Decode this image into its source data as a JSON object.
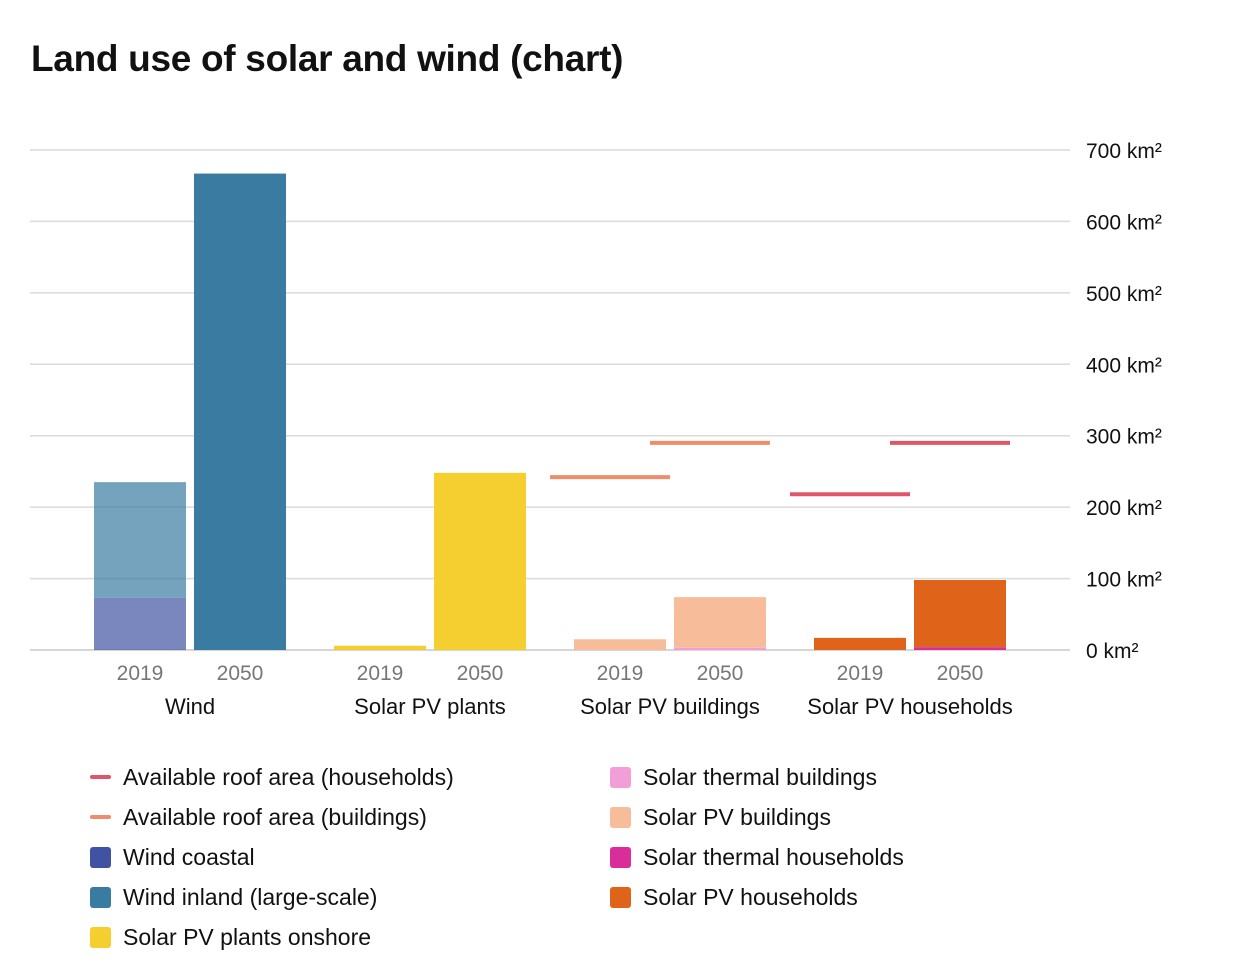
{
  "page": {
    "title": "Land use of solar and wind (chart)"
  },
  "chart_data": {
    "type": "bar",
    "title": "Land use of solar and wind (chart)",
    "xlabel": "",
    "ylabel": "",
    "ylim": [
      0,
      700
    ],
    "yticks": [
      0,
      100,
      200,
      300,
      400,
      500,
      600,
      700
    ],
    "y_unit": "km²",
    "grid": true,
    "legend_position": "bottom",
    "groups": [
      {
        "name": "Wind",
        "years": [
          {
            "year": "2019",
            "segments": [
              {
                "series": "Wind coastal",
                "value": 73
              },
              {
                "series": "Wind inland (large-scale)",
                "value": 162
              }
            ]
          },
          {
            "year": "2050",
            "segments": [
              {
                "series": "Wind coastal",
                "value": 0
              },
              {
                "series": "Wind inland (large-scale)",
                "value": 667
              }
            ]
          }
        ]
      },
      {
        "name": "Solar PV plants",
        "years": [
          {
            "year": "2019",
            "segments": [
              {
                "series": "Solar PV plants onshore",
                "value": 6
              }
            ]
          },
          {
            "year": "2050",
            "segments": [
              {
                "series": "Solar PV plants onshore",
                "value": 248
              }
            ]
          }
        ]
      },
      {
        "name": "Solar PV buildings",
        "years": [
          {
            "year": "2019",
            "segments": [
              {
                "series": "Solar thermal buildings",
                "value": 0
              },
              {
                "series": "Solar PV buildings",
                "value": 15
              }
            ],
            "lines": [
              {
                "series": "Available roof area (buildings)",
                "value": 242
              }
            ]
          },
          {
            "year": "2050",
            "segments": [
              {
                "series": "Solar thermal buildings",
                "value": 3
              },
              {
                "series": "Solar PV buildings",
                "value": 71
              }
            ],
            "lines": [
              {
                "series": "Available roof area (buildings)",
                "value": 290
              }
            ]
          }
        ]
      },
      {
        "name": "Solar PV households",
        "years": [
          {
            "year": "2019",
            "segments": [
              {
                "series": "Solar thermal households",
                "value": 0
              },
              {
                "series": "Solar PV households",
                "value": 17
              }
            ],
            "lines": [
              {
                "series": "Available roof area (households)",
                "value": 218
              }
            ]
          },
          {
            "year": "2050",
            "segments": [
              {
                "series": "Solar thermal households",
                "value": 4
              },
              {
                "series": "Solar PV households",
                "value": 94
              }
            ],
            "lines": [
              {
                "series": "Available roof area (households)",
                "value": 290
              }
            ]
          }
        ]
      }
    ],
    "series": [
      {
        "name": "Available roof area (households)",
        "kind": "line",
        "color": "#e05569"
      },
      {
        "name": "Available roof area (buildings)",
        "kind": "line",
        "color": "#f08c6a"
      },
      {
        "name": "Wind coastal",
        "kind": "bar",
        "color": "#4252a3"
      },
      {
        "name": "Wind inland (large-scale)",
        "kind": "bar",
        "color": "#3a7ca1"
      },
      {
        "name": "Solar PV plants onshore",
        "kind": "bar",
        "color": "#f5ce2f"
      },
      {
        "name": "Solar thermal buildings",
        "kind": "bar",
        "color": "#f49ed8"
      },
      {
        "name": "Solar PV buildings",
        "kind": "bar",
        "color": "#f7bc99"
      },
      {
        "name": "Solar thermal households",
        "kind": "bar",
        "color": "#d92e9a"
      },
      {
        "name": "Solar PV households",
        "kind": "bar",
        "color": "#df6419"
      }
    ],
    "legend_columns": [
      [
        "Available roof area (households)",
        "Available roof area (buildings)",
        "Wind coastal",
        "Wind inland (large-scale)",
        "Solar PV plants onshore"
      ],
      [
        "Solar thermal buildings",
        "Solar PV buildings",
        "Solar thermal households",
        "Solar PV households"
      ]
    ]
  }
}
